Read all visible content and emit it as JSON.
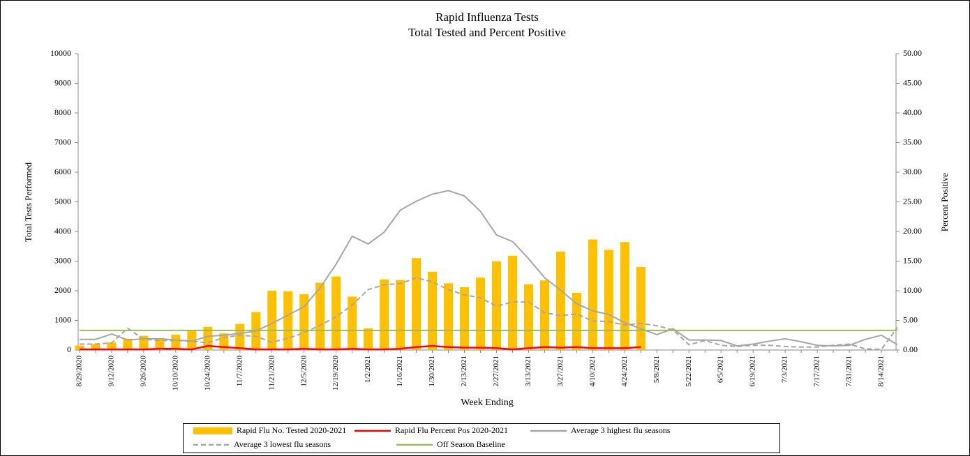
{
  "chart_data": {
    "type": "combo",
    "title": "Rapid Influenza Tests",
    "subtitle": "Total Tested and Percent Positive",
    "x_label": "Week Ending",
    "y_label": "Total Tests Performed",
    "y2_label": "Percent Positive",
    "categories": [
      "8/29/2020",
      null,
      "9/12/2020",
      null,
      "9/26/2020",
      null,
      "10/10/2020",
      null,
      "10/24/2020",
      null,
      "11/7/2020",
      null,
      "11/21/2020",
      null,
      "12/5/2020",
      null,
      "12/19/2020",
      null,
      "1/2/2021",
      null,
      "1/16/2021",
      null,
      "1/30/2021",
      null,
      "2/13/2021",
      null,
      "2/27/2021",
      null,
      "3/13/2021",
      null,
      "3/27/2021",
      null,
      "4/10/2021",
      null,
      "4/24/2021",
      null,
      "5/8/2021",
      null,
      "5/22/2021",
      null,
      "6/5/2021",
      null,
      "6/19/2021",
      null,
      "7/3/2021",
      null,
      "7/17/2021",
      null,
      "7/31/2021",
      null,
      "8/14/2021",
      null
    ],
    "ylim": [
      0,
      10000
    ],
    "yticks": [
      0,
      1000,
      2000,
      3000,
      4000,
      5000,
      6000,
      7000,
      8000,
      9000,
      10000
    ],
    "y2lim": [
      0,
      50
    ],
    "y2ticks": [
      {
        "value": 0,
        "label": "0.00"
      },
      {
        "value": 5,
        "label": "5.00"
      },
      {
        "value": 10,
        "label": "10.00"
      },
      {
        "value": 15,
        "label": "15.00"
      },
      {
        "value": 20,
        "label": "20.00"
      },
      {
        "value": 25,
        "label": "25.00"
      },
      {
        "value": 30,
        "label": "30.00"
      },
      {
        "value": 35,
        "label": "35.00"
      },
      {
        "value": 40,
        "label": "40.00"
      },
      {
        "value": 45,
        "label": "45.00"
      },
      {
        "value": 50,
        "label": "50.00"
      }
    ],
    "grid": false,
    "legend": "bottom",
    "series": [
      {
        "name": "Rapid Flu No. Tested 2020-2021",
        "type": "bar",
        "color": "#FFC000",
        "values": [
          150,
          200,
          250,
          380,
          480,
          400,
          520,
          680,
          780,
          560,
          880,
          1280,
          2000,
          1980,
          1880,
          2270,
          2480,
          1800,
          730,
          2380,
          2360,
          3100,
          2640,
          2250,
          2120,
          2440,
          2990,
          3180,
          2220,
          2350,
          3320,
          1930,
          3730,
          3380,
          3640,
          2800,
          null,
          null,
          null,
          null,
          null,
          null,
          null,
          null,
          null,
          null,
          null,
          null,
          null,
          null,
          null,
          null
        ]
      },
      {
        "name": "Rapid Flu Percent Pos 2020-2021",
        "type": "line",
        "axis": "y2",
        "color": "#FF0000",
        "values": [
          0.1,
          0.1,
          0.1,
          0.1,
          0.1,
          0.2,
          0.2,
          0.1,
          0.7,
          0.5,
          0.3,
          0.1,
          0.1,
          0.1,
          0.2,
          0.1,
          0.1,
          0.2,
          0.1,
          0.1,
          0.2,
          0.5,
          0.7,
          0.5,
          0.4,
          0.4,
          0.3,
          0.1,
          0.3,
          0.5,
          0.4,
          0.5,
          0.3,
          0.3,
          0.3,
          0.5,
          null,
          null,
          null,
          null,
          null,
          null,
          null,
          null,
          null,
          null,
          null,
          null,
          null,
          null,
          null,
          null
        ]
      },
      {
        "name": "Average 3 highest flu seasons",
        "type": "line",
        "axis": "y2",
        "color": "#A6A6A6",
        "values": [
          1.8,
          1.8,
          2.7,
          1.7,
          1.9,
          1.9,
          1.7,
          1.5,
          2.3,
          2.5,
          2.8,
          3.2,
          4.5,
          5.9,
          7.3,
          10.5,
          14.5,
          19.2,
          17.9,
          19.9,
          23.6,
          25.1,
          26.3,
          26.9,
          26.0,
          23.4,
          19.4,
          18.3,
          15.4,
          12.2,
          10.1,
          7.8,
          6.6,
          6.0,
          4.6,
          3.6,
          2.6,
          3.6,
          1.7,
          1.7,
          1.6,
          0.7,
          1.0,
          1.5,
          1.9,
          1.4,
          0.8,
          0.7,
          0.8,
          1.8,
          2.5,
          0.9
        ]
      },
      {
        "name": "Average 3 lowest flu seasons",
        "type": "line",
        "axis": "y2",
        "color": "#A6A6A6",
        "dashed": true,
        "values": [
          1.0,
          1.0,
          1.2,
          3.7,
          1.8,
          1.6,
          1.6,
          1.5,
          1.2,
          2.1,
          2.5,
          2.3,
          1.3,
          2.0,
          2.9,
          4.2,
          5.6,
          7.6,
          10.2,
          11.0,
          11.2,
          12.2,
          11.5,
          10.2,
          9.3,
          8.8,
          7.4,
          8.1,
          8.1,
          6.3,
          5.8,
          6.1,
          4.9,
          4.8,
          4.2,
          4.5,
          4.1,
          3.4,
          0.9,
          1.6,
          0.8,
          0.6,
          0.8,
          0.8,
          0.6,
          0.5,
          0.5,
          0.8,
          1.0,
          0.2,
          0.1,
          3.8
        ]
      },
      {
        "name": "Off Season Baseline",
        "type": "line",
        "axis": "y2",
        "color": "#9BBB59",
        "values": [
          3.3,
          3.3,
          3.3,
          3.3,
          3.3,
          3.3,
          3.3,
          3.3,
          3.3,
          3.3,
          3.3,
          3.3,
          3.3,
          3.3,
          3.3,
          3.3,
          3.3,
          3.3,
          3.3,
          3.3,
          3.3,
          3.3,
          3.3,
          3.3,
          3.3,
          3.3,
          3.3,
          3.3,
          3.3,
          3.3,
          3.3,
          3.3,
          3.3,
          3.3,
          3.3,
          3.3,
          3.3,
          3.3,
          3.3,
          3.3,
          3.3,
          3.3,
          3.3,
          3.3,
          3.3,
          3.3,
          3.3,
          3.3,
          3.3,
          3.3,
          3.3,
          3.3
        ]
      }
    ]
  }
}
